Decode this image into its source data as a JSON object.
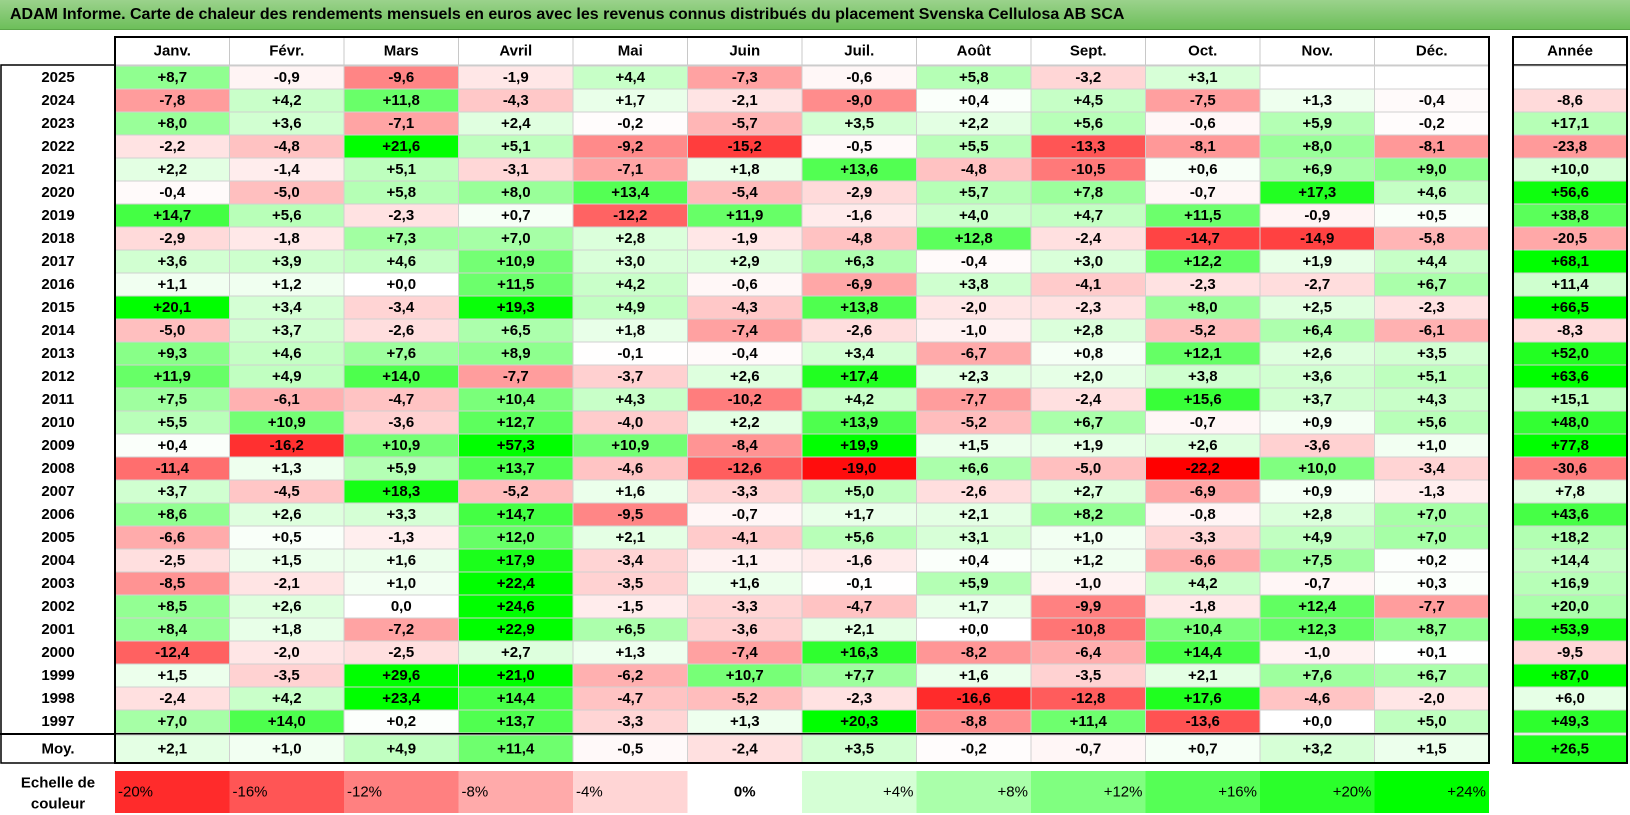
{
  "title": "ADAM Informe. Carte de chaleur des rendements mensuels en euros avec les revenus connus distribués du placement Svenska Cellulosa AB SCA",
  "colors": {
    "title_bg": "#7cc66a",
    "positive_max": "#00ff00",
    "negative_max": "#ff0000",
    "neutral": "#ffffff"
  },
  "chart_data": {
    "type": "heatmap",
    "title": "ADAM Informe. Carte de chaleur des rendements mensuels en euros avec les revenus connus distribués du placement Svenska Cellulosa AB SCA",
    "columns": [
      "Janv.",
      "Févr.",
      "Mars",
      "Avril",
      "Mai",
      "Juin",
      "Juil.",
      "Août",
      "Sept.",
      "Oct.",
      "Nov.",
      "Déc."
    ],
    "year_header": "Année",
    "rows": [
      {
        "year": "2025",
        "months": [
          "+8,7",
          "-0,9",
          "-9,6",
          "-1,9",
          "+4,4",
          "-7,3",
          "-0,6",
          "+5,8",
          "-3,2",
          "+3,1",
          "",
          ""
        ],
        "annual": ""
      },
      {
        "year": "2024",
        "months": [
          "-7,8",
          "+4,2",
          "+11,8",
          "-4,3",
          "+1,7",
          "-2,1",
          "-9,0",
          "+0,4",
          "+4,5",
          "-7,5",
          "+1,3",
          "-0,4"
        ],
        "annual": "-8,6"
      },
      {
        "year": "2023",
        "months": [
          "+8,0",
          "+3,6",
          "-7,1",
          "+2,4",
          "-0,2",
          "-5,7",
          "+3,5",
          "+2,2",
          "+5,6",
          "-0,6",
          "+5,9",
          "-0,2"
        ],
        "annual": "+17,1"
      },
      {
        "year": "2022",
        "months": [
          "-2,2",
          "-4,8",
          "+21,6",
          "+5,1",
          "-9,2",
          "-15,2",
          "-0,5",
          "+5,5",
          "-13,3",
          "-8,1",
          "+8,0",
          "-8,1"
        ],
        "annual": "-23,8"
      },
      {
        "year": "2021",
        "months": [
          "+2,2",
          "-1,4",
          "+5,1",
          "-3,1",
          "-7,1",
          "+1,8",
          "+13,6",
          "-4,8",
          "-10,5",
          "+0,6",
          "+6,9",
          "+9,0"
        ],
        "annual": "+10,0"
      },
      {
        "year": "2020",
        "months": [
          "-0,4",
          "-5,0",
          "+5,8",
          "+8,0",
          "+13,4",
          "-5,4",
          "-2,9",
          "+5,7",
          "+7,8",
          "-0,7",
          "+17,3",
          "+4,6"
        ],
        "annual": "+56,6"
      },
      {
        "year": "2019",
        "months": [
          "+14,7",
          "+5,6",
          "-2,3",
          "+0,7",
          "-12,2",
          "+11,9",
          "-1,6",
          "+4,0",
          "+4,7",
          "+11,5",
          "-0,9",
          "+0,5"
        ],
        "annual": "+38,8"
      },
      {
        "year": "2018",
        "months": [
          "-2,9",
          "-1,8",
          "+7,3",
          "+7,0",
          "+2,8",
          "-1,9",
          "-4,8",
          "+12,8",
          "-2,4",
          "-14,7",
          "-14,9",
          "-5,8"
        ],
        "annual": "-20,5"
      },
      {
        "year": "2017",
        "months": [
          "+3,6",
          "+3,9",
          "+4,6",
          "+10,9",
          "+3,0",
          "+2,9",
          "+6,3",
          "-0,4",
          "+3,0",
          "+12,2",
          "+1,9",
          "+4,4"
        ],
        "annual": "+68,1"
      },
      {
        "year": "2016",
        "months": [
          "+1,1",
          "+1,2",
          "+0,0",
          "+11,5",
          "+4,2",
          "-0,6",
          "-6,9",
          "+3,8",
          "-4,1",
          "-2,3",
          "-2,7",
          "+6,7"
        ],
        "annual": "+11,4"
      },
      {
        "year": "2015",
        "months": [
          "+20,1",
          "+3,4",
          "-3,4",
          "+19,3",
          "+4,9",
          "-4,3",
          "+13,8",
          "-2,0",
          "-2,3",
          "+8,0",
          "+2,5",
          "-2,3"
        ],
        "annual": "+66,5"
      },
      {
        "year": "2014",
        "months": [
          "-5,0",
          "+3,7",
          "-2,6",
          "+6,5",
          "+1,8",
          "-7,4",
          "-2,6",
          "-1,0",
          "+2,8",
          "-5,2",
          "+6,4",
          "-6,1"
        ],
        "annual": "-8,3"
      },
      {
        "year": "2013",
        "months": [
          "+9,3",
          "+4,6",
          "+7,6",
          "+8,9",
          "-0,1",
          "-0,4",
          "+3,4",
          "-6,7",
          "+0,8",
          "+12,1",
          "+2,6",
          "+3,5"
        ],
        "annual": "+52,0"
      },
      {
        "year": "2012",
        "months": [
          "+11,9",
          "+4,9",
          "+14,0",
          "-7,7",
          "-3,7",
          "+2,6",
          "+17,4",
          "+2,3",
          "+2,0",
          "+3,8",
          "+3,6",
          "+5,1"
        ],
        "annual": "+63,6"
      },
      {
        "year": "2011",
        "months": [
          "+7,5",
          "-6,1",
          "-4,7",
          "+10,4",
          "+4,3",
          "-10,2",
          "+4,2",
          "-7,7",
          "-2,4",
          "+15,6",
          "+3,7",
          "+4,3"
        ],
        "annual": "+15,1"
      },
      {
        "year": "2010",
        "months": [
          "+5,5",
          "+10,9",
          "-3,6",
          "+12,7",
          "-4,0",
          "+2,2",
          "+13,9",
          "-5,2",
          "+6,7",
          "-0,7",
          "+0,9",
          "+5,6"
        ],
        "annual": "+48,0"
      },
      {
        "year": "2009",
        "months": [
          "+0,4",
          "-16,2",
          "+10,9",
          "+57,3",
          "+10,9",
          "-8,4",
          "+19,9",
          "+1,5",
          "+1,9",
          "+2,6",
          "-3,6",
          "+1,0"
        ],
        "annual": "+77,8"
      },
      {
        "year": "2008",
        "months": [
          "-11,4",
          "+1,3",
          "+5,9",
          "+13,7",
          "-4,6",
          "-12,6",
          "-19,0",
          "+6,6",
          "-5,0",
          "-22,2",
          "+10,0",
          "-3,4"
        ],
        "annual": "-30,6"
      },
      {
        "year": "2007",
        "months": [
          "+3,7",
          "-4,5",
          "+18,3",
          "-5,2",
          "+1,6",
          "-3,3",
          "+5,0",
          "-2,6",
          "+2,7",
          "-6,9",
          "+0,9",
          "-1,3"
        ],
        "annual": "+7,8"
      },
      {
        "year": "2006",
        "months": [
          "+8,6",
          "+2,6",
          "+3,3",
          "+14,7",
          "-9,5",
          "-0,7",
          "+1,7",
          "+2,1",
          "+8,2",
          "-0,8",
          "+2,8",
          "+7,0"
        ],
        "annual": "+43,6"
      },
      {
        "year": "2005",
        "months": [
          "-6,6",
          "+0,5",
          "-1,3",
          "+12,0",
          "+2,1",
          "-4,1",
          "+5,6",
          "+3,1",
          "+1,0",
          "-3,3",
          "+4,9",
          "+7,0"
        ],
        "annual": "+18,2"
      },
      {
        "year": "2004",
        "months": [
          "-2,5",
          "+1,5",
          "+1,6",
          "+17,9",
          "-3,4",
          "-1,1",
          "-1,6",
          "+0,4",
          "+1,2",
          "-6,6",
          "+7,5",
          "+0,2"
        ],
        "annual": "+14,4"
      },
      {
        "year": "2003",
        "months": [
          "-8,5",
          "-2,1",
          "+1,0",
          "+22,4",
          "-3,5",
          "+1,6",
          "-0,1",
          "+5,9",
          "-1,0",
          "+4,2",
          "-0,7",
          "+0,3"
        ],
        "annual": "+16,9"
      },
      {
        "year": "2002",
        "months": [
          "+8,5",
          "+2,6",
          "0,0",
          "+24,6",
          "-1,5",
          "-3,3",
          "-4,7",
          "+1,7",
          "-9,9",
          "-1,8",
          "+12,4",
          "-7,7"
        ],
        "annual": "+20,0"
      },
      {
        "year": "2001",
        "months": [
          "+8,4",
          "+1,8",
          "-7,2",
          "+22,9",
          "+6,5",
          "-3,6",
          "+2,1",
          "+0,0",
          "-10,8",
          "+10,4",
          "+12,3",
          "+8,7"
        ],
        "annual": "+53,9"
      },
      {
        "year": "2000",
        "months": [
          "-12,4",
          "-2,0",
          "-2,5",
          "+2,7",
          "+1,3",
          "-7,4",
          "+16,3",
          "-8,2",
          "-6,4",
          "+14,4",
          "-1,0",
          "+0,1"
        ],
        "annual": "-9,5"
      },
      {
        "year": "1999",
        "months": [
          "+1,5",
          "-3,5",
          "+29,6",
          "+21,0",
          "-6,2",
          "+10,7",
          "+7,7",
          "+1,6",
          "-3,5",
          "+2,1",
          "+7,6",
          "+6,7"
        ],
        "annual": "+87,0"
      },
      {
        "year": "1998",
        "months": [
          "-2,4",
          "+4,2",
          "+23,4",
          "+14,4",
          "-4,7",
          "-5,2",
          "-2,3",
          "-16,6",
          "-12,8",
          "+17,6",
          "-4,6",
          "-2,0"
        ],
        "annual": "+6,0"
      },
      {
        "year": "1997",
        "months": [
          "+7,0",
          "+14,0",
          "+0,2",
          "+13,7",
          "-3,3",
          "+1,3",
          "+20,3",
          "-8,8",
          "+11,4",
          "-13,6",
          "+0,0",
          "+5,0"
        ],
        "annual": "+49,3"
      }
    ],
    "average": {
      "label": "Moy.",
      "months": [
        "+2,1",
        "+1,0",
        "+4,9",
        "+11,4",
        "-0,5",
        "-2,4",
        "+3,5",
        "-0,2",
        "-0,7",
        "+0,7",
        "+3,2",
        "+1,5"
      ],
      "annual": "+26,5"
    },
    "scale": {
      "label": "Echelle de couleur",
      "items": [
        {
          "text": "-20%",
          "value": -20
        },
        {
          "text": "-16%",
          "value": -16
        },
        {
          "text": "-12%",
          "value": -12
        },
        {
          "text": "-8%",
          "value": -8
        },
        {
          "text": "-4%",
          "value": -4
        },
        {
          "text": "0%",
          "value": 0
        },
        {
          "text": "+4%",
          "value": 4
        },
        {
          "text": "+8%",
          "value": 8
        },
        {
          "text": "+12%",
          "value": 12
        },
        {
          "text": "+16%",
          "value": 16
        },
        {
          "text": "+20%",
          "value": 20
        },
        {
          "text": "+24%",
          "value": 24
        }
      ]
    }
  }
}
